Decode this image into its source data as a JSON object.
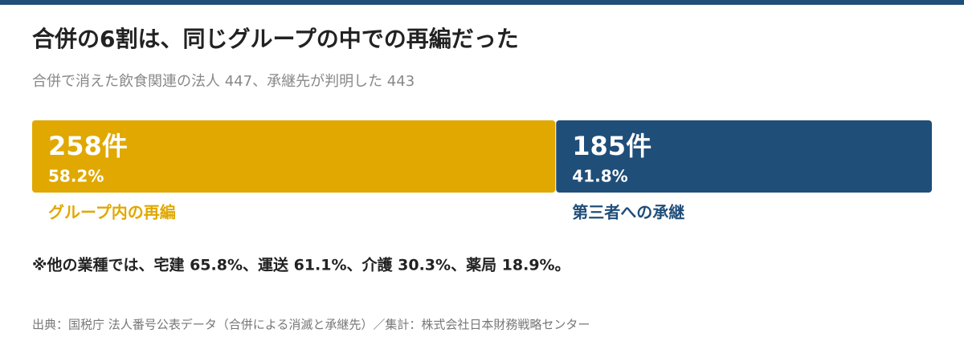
{
  "chart_data": {
    "type": "stacked-bar",
    "title": "合併の6割は、同じグループの中での再編だった",
    "subtitle": "合併で消えた飲食関連の法人 447、承継先が判明した 443",
    "series": [
      {
        "name": "グループ内の再編",
        "color": "#e0a800",
        "values": [
          258
        ],
        "value_labels": [
          "258件"
        ],
        "percents": [
          58.2
        ],
        "percent_labels": [
          "58.2%"
        ]
      },
      {
        "name": "第三者への承継",
        "color": "#1f4e79",
        "values": [
          185
        ],
        "value_labels": [
          "185件"
        ],
        "percents": [
          41.8
        ],
        "percent_labels": [
          "41.8%"
        ]
      }
    ],
    "note": "※他の業種では、宅建 65.8%、運送 61.1%、介護 30.3%、薬局 18.9%。",
    "source": "出典：国税庁 法人番号公表データ（合併による消滅と承継先）／集計：株式会社日本財務戦略センター"
  }
}
